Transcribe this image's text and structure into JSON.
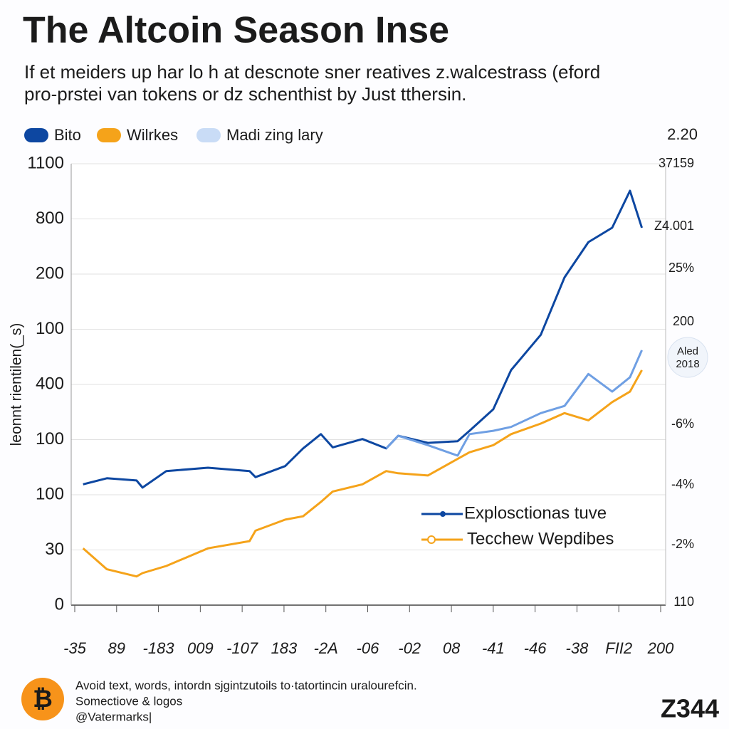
{
  "chart_data": {
    "type": "line",
    "title": "The Altcoin Season Inse",
    "subtitle": [
      "If et meiders up har lo h at descnote sner reatives z.walcestrass (eford",
      "pro-prstei van tokens or dz schenthist by Just tthersin."
    ],
    "y_label": "leonnt rientilen(_s)",
    "x": [
      2,
      6,
      11,
      12,
      16,
      23,
      30,
      31,
      36,
      39,
      42,
      44,
      49,
      53,
      55,
      60,
      65,
      67,
      71,
      74,
      79,
      83,
      87,
      91,
      94,
      96
    ],
    "xlim": [
      0,
      100
    ],
    "ylim": [
      0,
      8
    ],
    "yticks": [
      0,
      1,
      2,
      3,
      4,
      5,
      6,
      7,
      8
    ],
    "ytick_labels": [
      "0",
      "30",
      "100",
      "100",
      "400",
      "100",
      "200",
      "800",
      "1100"
    ],
    "xtick_labels": [
      "-35",
      "89",
      "-183",
      "009",
      "-107",
      "183",
      "-2A",
      "-06",
      "-02",
      "08",
      "-41",
      "-46",
      "-38",
      "FII2",
      "200"
    ],
    "right_labels": [
      "2.20",
      "37159",
      "Z4.001",
      "25%",
      "200",
      "-6%",
      "-4%",
      "-2%",
      "110"
    ],
    "badge": [
      "Aled",
      "2018"
    ],
    "grid": true,
    "series": [
      {
        "name": "Bito",
        "color": "#0d47a1",
        "values": [
          2.19,
          2.3,
          2.26,
          2.13,
          2.43,
          2.49,
          2.43,
          2.32,
          2.52,
          2.84,
          3.1,
          2.86,
          3.01,
          2.84,
          3.07,
          2.94,
          2.97,
          3.16,
          3.55,
          4.26,
          4.9,
          5.94,
          6.58,
          6.84,
          7.51,
          6.84
        ]
      },
      {
        "name": "Wilrkes",
        "color": "#f5a31a",
        "values": [
          1.03,
          0.65,
          0.52,
          0.58,
          0.71,
          1.03,
          1.16,
          1.35,
          1.55,
          1.61,
          1.87,
          2.06,
          2.19,
          2.43,
          2.39,
          2.35,
          2.65,
          2.77,
          2.9,
          3.1,
          3.29,
          3.48,
          3.35,
          3.68,
          3.87,
          4.26
        ]
      },
      {
        "name": "Madi zing lary",
        "color": "#6f9fe3",
        "values": [
          null,
          null,
          null,
          null,
          null,
          null,
          null,
          null,
          null,
          null,
          null,
          null,
          null,
          2.84,
          3.07,
          2.9,
          2.71,
          3.1,
          3.16,
          3.23,
          3.48,
          3.61,
          4.19,
          3.87,
          4.13,
          4.62
        ]
      }
    ],
    "annotations": [
      "Explosctionas tuve",
      "Tecchew Wepdibes"
    ],
    "footer": [
      "Avoid text, words, intordn sjgintzutoils to·tatortincin uralourefcin.",
      "Somectiove & logos",
      "@Vatermarks|"
    ],
    "logo_text": "Z344"
  }
}
